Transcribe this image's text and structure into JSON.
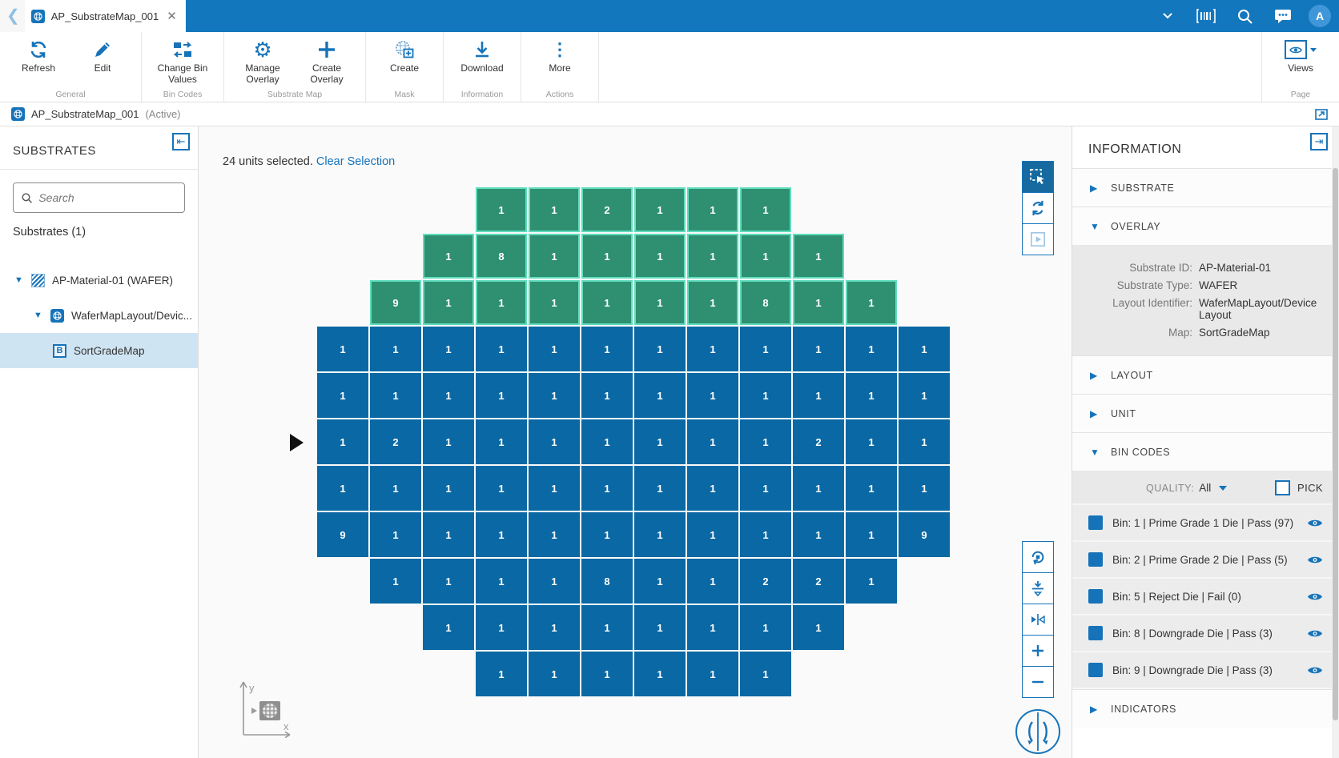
{
  "topbar": {
    "tab_title": "AP_SubstrateMap_001",
    "avatar_initial": "A"
  },
  "ribbon": {
    "refresh": "Refresh",
    "edit": "Edit",
    "change_bin_values": "Change Bin Values",
    "manage_overlay": "Manage Overlay",
    "create_overlay": "Create Overlay",
    "create": "Create",
    "download": "Download",
    "more": "More",
    "views": "Views",
    "group_general": "General",
    "group_bin_codes": "Bin Codes",
    "group_substrate_map": "Substrate Map",
    "group_mask": "Mask",
    "group_information": "Information",
    "group_actions": "Actions",
    "group_page": "Page"
  },
  "breadcrumb": {
    "title": "AP_SubstrateMap_001",
    "status": "(Active)"
  },
  "sidebar": {
    "title": "SUBSTRATES",
    "search_placeholder": "Search",
    "count_label": "Substrates (1)",
    "tree": [
      {
        "label": "AP-Material-01 (WAFER)"
      },
      {
        "label": "WaferMapLayout/Devic..."
      },
      {
        "label": "SortGradeMap"
      }
    ]
  },
  "map": {
    "selection_text": "24 units selected.",
    "clear_link": "Clear Selection",
    "axis_x": "x",
    "axis_y": "y"
  },
  "wafer_grid": {
    "colors": {
      "normal": "#0a68a4",
      "selected_fill": "#2e9070",
      "selected_border": "#5fddbd",
      "gridline": "#ffffff"
    },
    "rows": [
      {
        "offset": 3,
        "selected": true,
        "values": [
          1,
          1,
          2,
          1,
          1,
          1
        ]
      },
      {
        "offset": 2,
        "selected": true,
        "values": [
          1,
          8,
          1,
          1,
          1,
          1,
          1,
          1
        ]
      },
      {
        "offset": 1,
        "selected": true,
        "values": [
          9,
          1,
          1,
          1,
          1,
          1,
          1,
          8,
          1,
          1
        ]
      },
      {
        "offset": 0,
        "selected": false,
        "values": [
          1,
          1,
          1,
          1,
          1,
          1,
          1,
          1,
          1,
          1,
          1,
          1
        ]
      },
      {
        "offset": 0,
        "selected": false,
        "values": [
          1,
          1,
          1,
          1,
          1,
          1,
          1,
          1,
          1,
          1,
          1,
          1
        ]
      },
      {
        "offset": 0,
        "selected": false,
        "values": [
          1,
          2,
          1,
          1,
          1,
          1,
          1,
          1,
          1,
          2,
          1,
          1
        ]
      },
      {
        "offset": 0,
        "selected": false,
        "values": [
          1,
          1,
          1,
          1,
          1,
          1,
          1,
          1,
          1,
          1,
          1,
          1
        ]
      },
      {
        "offset": 0,
        "selected": false,
        "values": [
          9,
          1,
          1,
          1,
          1,
          1,
          1,
          1,
          1,
          1,
          1,
          9
        ]
      },
      {
        "offset": 1,
        "selected": false,
        "values": [
          1,
          1,
          1,
          1,
          8,
          1,
          1,
          2,
          2,
          1
        ]
      },
      {
        "offset": 2,
        "selected": false,
        "values": [
          1,
          1,
          1,
          1,
          1,
          1,
          1,
          1
        ]
      },
      {
        "offset": 3,
        "selected": false,
        "values": [
          1,
          1,
          1,
          1,
          1,
          1
        ]
      }
    ]
  },
  "info": {
    "title": "INFORMATION",
    "sections": {
      "substrate": "SUBSTRATE",
      "overlay": "OVERLAY",
      "layout": "LAYOUT",
      "unit": "UNIT",
      "bin_codes": "BIN CODES",
      "indicators": "INDICATORS"
    },
    "overlay_fields": [
      {
        "label": "Substrate ID:",
        "value": "AP-Material-01"
      },
      {
        "label": "Substrate Type:",
        "value": "WAFER"
      },
      {
        "label": "Layout Identifier:",
        "value": "WaferMapLayout/DeviceLayout"
      },
      {
        "label": "Map:",
        "value": "SortGradeMap"
      }
    ],
    "quality_label": "QUALITY:",
    "quality_value": "All",
    "pick_label": "PICK",
    "bin_swatch_color": "#1673b9",
    "bins": [
      {
        "label": "Bin: 1 | Prime Grade 1 Die | Pass (97)"
      },
      {
        "label": "Bin: 2 | Prime Grade 2 Die | Pass (5)"
      },
      {
        "label": "Bin: 5 | Reject Die | Fail (0)"
      },
      {
        "label": "Bin: 8 | Downgrade Die | Pass (3)"
      },
      {
        "label": "Bin: 9 | Downgrade Die | Pass (3)"
      }
    ]
  }
}
